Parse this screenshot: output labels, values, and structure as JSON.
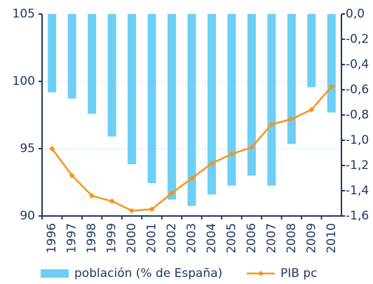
{
  "chart_data": {
    "type": "bar_line",
    "categories": [
      "1996",
      "1997",
      "1998",
      "1999",
      "2000",
      "2001",
      "2002",
      "2003",
      "2004",
      "2005",
      "2006",
      "2007",
      "2008",
      "2009",
      "2010"
    ],
    "series": [
      {
        "name": "población (% de España)",
        "type": "bar",
        "axis": "y2",
        "color": "#6dcff6",
        "values": [
          -0.62,
          -0.67,
          -0.79,
          -0.97,
          -1.19,
          -1.34,
          -1.47,
          -1.52,
          -1.43,
          -1.36,
          -1.28,
          -1.36,
          -1.03,
          -0.58,
          -0.78
        ]
      },
      {
        "name": "PIB pc",
        "type": "line",
        "color": "#f7941d",
        "values": [
          95.0,
          93.0,
          91.5,
          91.1,
          90.4,
          90.5,
          91.7,
          92.8,
          93.9,
          94.6,
          95.1,
          96.8,
          97.2,
          97.9,
          99.6
        ]
      }
    ],
    "ylim": [
      90,
      105
    ],
    "yticks": [
      90,
      95,
      100,
      105
    ],
    "y2lim": [
      -1.6,
      0
    ],
    "y2ticks": [
      {
        "value": -1.6,
        "label": "-1,6"
      },
      {
        "value": -1.4,
        "label": "-1,4"
      },
      {
        "value": -1.2,
        "label": "-1,2"
      },
      {
        "value": -1.0,
        "label": "-1,0"
      },
      {
        "value": -0.8,
        "label": "-0,8"
      },
      {
        "value": -0.6,
        "label": "-0,6"
      },
      {
        "value": -0.4,
        "label": "-0,4"
      },
      {
        "value": -0.2,
        "label": "-0,2"
      },
      {
        "value": 0,
        "label": "0,0"
      }
    ],
    "grid": true,
    "legend": "bottom"
  }
}
